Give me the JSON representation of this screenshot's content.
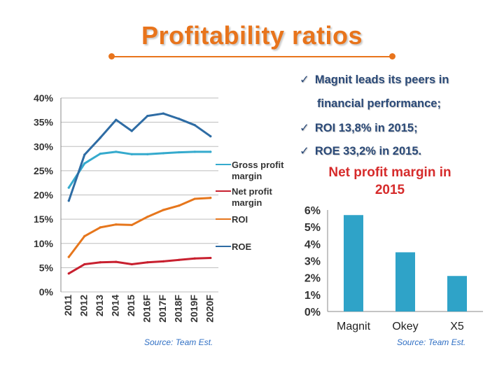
{
  "title": "Profitability ratios",
  "colors": {
    "title": "#e8741c",
    "rule": "#e8741c",
    "bullet_text": "#2b4a78",
    "chart_title": "#d62b2b",
    "source": "#2f6fc4",
    "roe": "#2e6ca4",
    "gross_margin": "#35aacd",
    "net_margin": "#c8202f",
    "roi": "#e6761c",
    "bar": "#2fa3c8"
  },
  "bullets": [
    {
      "icon": "check-icon",
      "lines": [
        "Magnit leads its peers in",
        "financial performance;"
      ]
    },
    {
      "icon": "check-icon",
      "lines": [
        "ROI 13,8% in 2015;"
      ]
    },
    {
      "icon": "check-icon",
      "lines": [
        "ROE 33,2% in 2015."
      ]
    }
  ],
  "left_source": "Source: Team Est.",
  "right_source": "Source: Team Est.",
  "right_chart_title_lines": [
    "Net profit margin in",
    "2015"
  ],
  "chart_data": [
    {
      "type": "line",
      "title": "",
      "xlabel": "",
      "ylabel": "",
      "x": [
        "2011",
        "2012",
        "2013",
        "2014",
        "2015",
        "2016F",
        "2017F",
        "2018F",
        "2019F",
        "2020F"
      ],
      "ylim": [
        0,
        40
      ],
      "yticks": [
        "0%",
        "5%",
        "10%",
        "15%",
        "20%",
        "25%",
        "30%",
        "35%",
        "40%"
      ],
      "grid": true,
      "legend_position": "right",
      "series": [
        {
          "name": "Gross profit margin",
          "color": "#35aacd",
          "legend": [
            "Gross profit",
            "margin"
          ],
          "values": [
            21.5,
            26.5,
            28.5,
            28.9,
            28.4,
            28.4,
            28.6,
            28.8,
            28.9,
            28.9
          ]
        },
        {
          "name": "Net profit margin",
          "color": "#c8202f",
          "legend": [
            "Net profit",
            "margin"
          ],
          "values": [
            3.8,
            5.7,
            6.1,
            6.2,
            5.7,
            6.1,
            6.3,
            6.6,
            6.9,
            7.0
          ]
        },
        {
          "name": "ROI",
          "color": "#e6761c",
          "legend": [
            "ROI"
          ],
          "values": [
            7.2,
            11.5,
            13.3,
            13.9,
            13.8,
            15.5,
            16.9,
            17.8,
            19.2,
            19.4
          ]
        },
        {
          "name": "ROE",
          "color": "#2e6ca4",
          "legend": [
            "ROE"
          ],
          "values": [
            18.8,
            28.3,
            31.8,
            35.5,
            33.2,
            36.3,
            36.8,
            35.7,
            34.4,
            32.1
          ]
        }
      ]
    },
    {
      "type": "bar",
      "title": "Net profit margin in 2015",
      "xlabel": "",
      "ylabel": "",
      "categories": [
        "Magnit",
        "Okey",
        "X5"
      ],
      "values": [
        5.7,
        3.5,
        2.1
      ],
      "ylim": [
        0,
        6
      ],
      "yticks": [
        "0%",
        "1%",
        "2%",
        "3%",
        "4%",
        "5%",
        "6%"
      ],
      "grid": false
    }
  ]
}
